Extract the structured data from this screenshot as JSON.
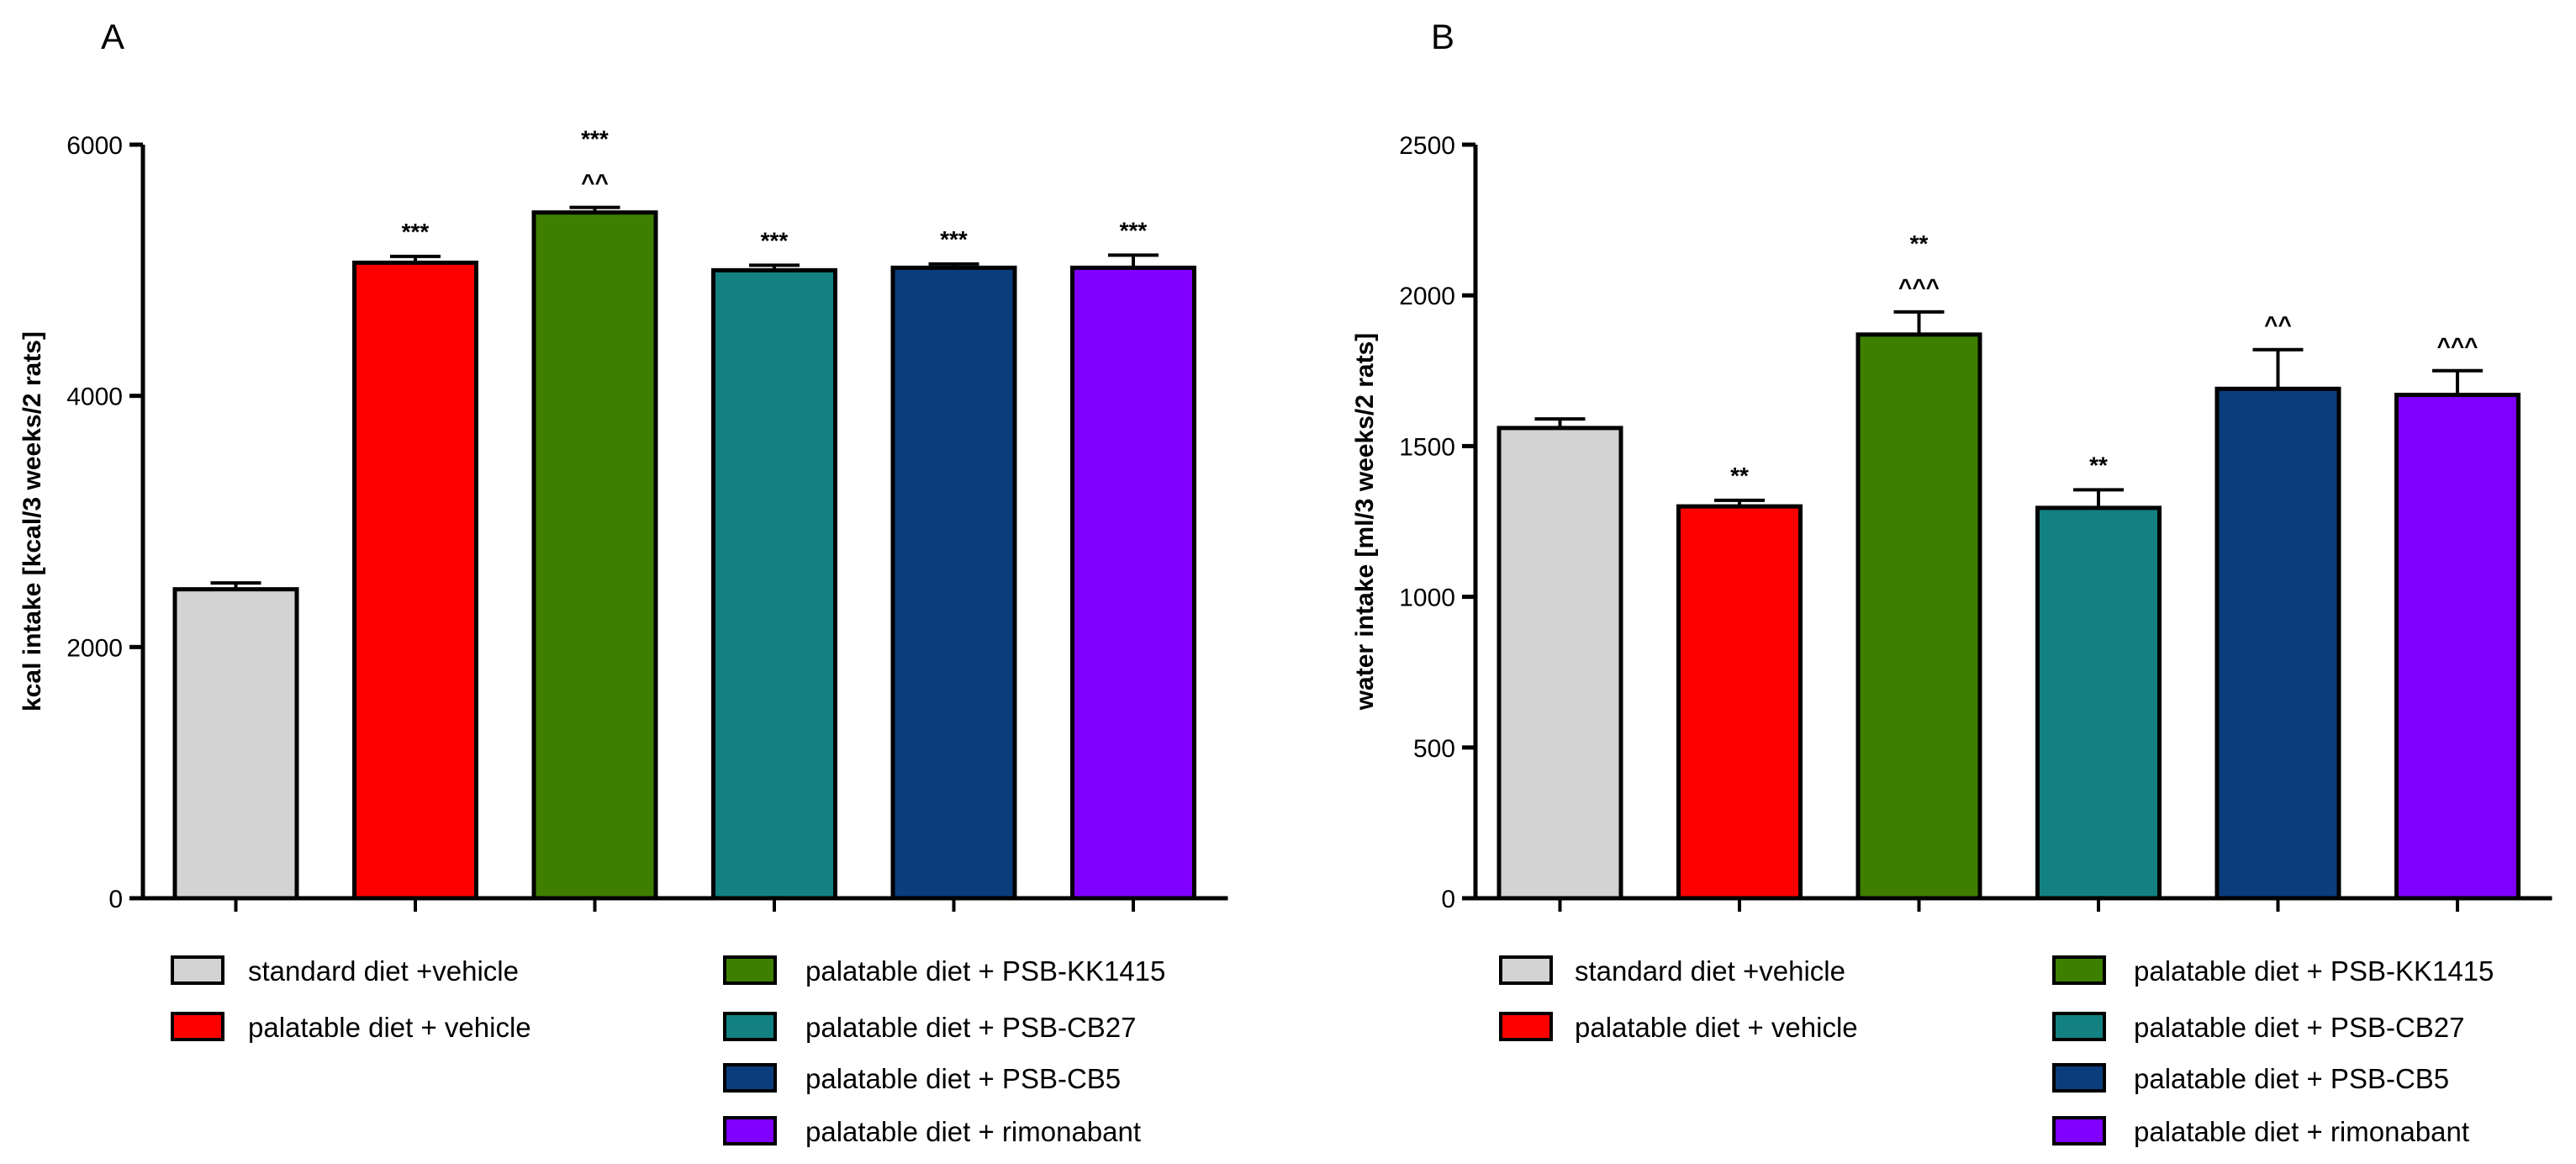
{
  "chart_data": [
    {
      "type": "bar",
      "panel": "A",
      "ylabel": "kcal intake  [kcal/3 weeks/2 rats]",
      "ylim": [
        0,
        6000
      ],
      "yticks": [
        0,
        2000,
        4000,
        6000
      ],
      "categories": [
        "standard diet +vehicle",
        "palatable diet + vehicle",
        "palatable diet + PSB-KK1415",
        "palatable diet + PSB-CB27",
        "palatable diet + PSB-CB5",
        "palatable diet + rimonabant"
      ],
      "values": [
        2460,
        5060,
        5460,
        5000,
        5020,
        5020
      ],
      "errors": [
        50,
        50,
        40,
        40,
        30,
        100
      ],
      "colors": [
        "#d3d3d3",
        "#ff0000",
        "#3f7f00",
        "#138181",
        "#0b3d7c",
        "#7f00ff"
      ],
      "annotations": [
        [],
        [
          "***"
        ],
        [
          "***",
          "^^"
        ],
        [
          "***"
        ],
        [
          "***"
        ],
        [
          "***"
        ]
      ],
      "legend_left": [
        "standard diet +vehicle",
        "palatable diet + vehicle"
      ],
      "legend_right": [
        "palatable diet + PSB-KK1415",
        "palatable diet + PSB-CB27",
        "palatable diet + PSB-CB5",
        "palatable diet + rimonabant"
      ]
    },
    {
      "type": "bar",
      "panel": "B",
      "ylabel": "water intake  [ml/3 weeks/2 rats]",
      "ylim": [
        0,
        2500
      ],
      "yticks": [
        0,
        500,
        1000,
        1500,
        2000,
        2500
      ],
      "categories": [
        "standard diet +vehicle",
        "palatable diet + vehicle",
        "palatable diet + PSB-KK1415",
        "palatable diet + PSB-CB27",
        "palatable diet + PSB-CB5",
        "palatable diet + rimonabant"
      ],
      "values": [
        1560,
        1300,
        1870,
        1295,
        1690,
        1670
      ],
      "errors": [
        30,
        20,
        75,
        60,
        130,
        80
      ],
      "colors": [
        "#d3d3d3",
        "#ff0000",
        "#3f7f00",
        "#138181",
        "#0b3d7c",
        "#7f00ff"
      ],
      "annotations": [
        [],
        [
          "**"
        ],
        [
          "**",
          "^^^"
        ],
        [
          "**"
        ],
        [
          "^^"
        ],
        [
          "^^^"
        ]
      ],
      "legend_left": [
        "standard diet +vehicle",
        "palatable diet + vehicle"
      ],
      "legend_right": [
        "palatable diet + PSB-KK1415",
        "palatable diet + PSB-CB27",
        "palatable diet + PSB-CB5",
        "palatable diet + rimonabant"
      ]
    }
  ]
}
